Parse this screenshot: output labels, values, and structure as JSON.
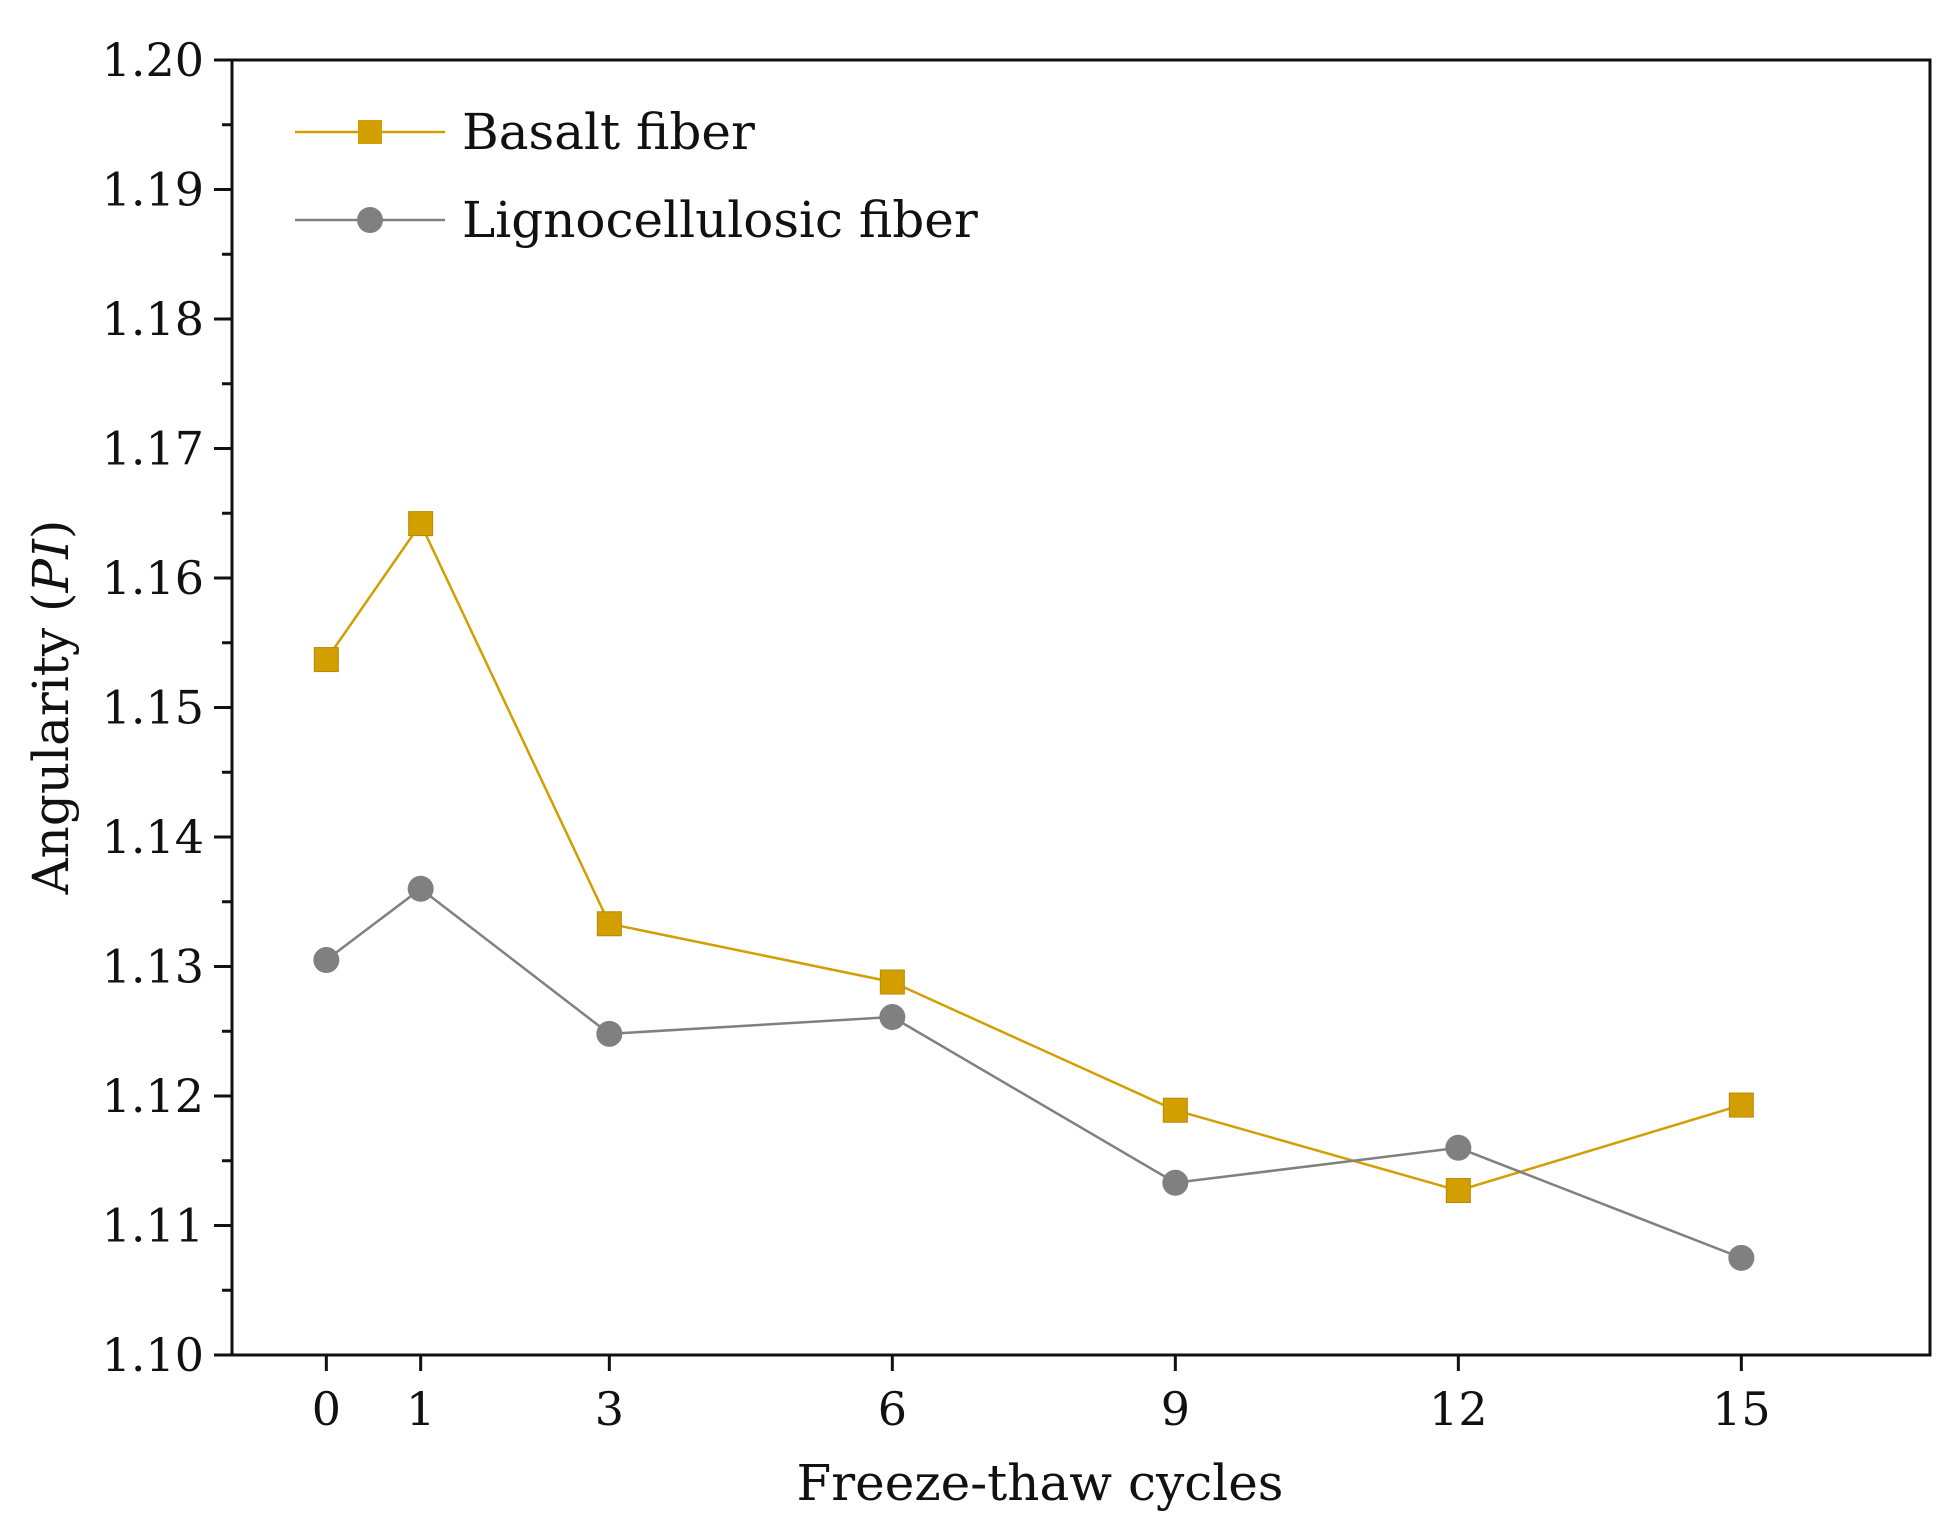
{
  "chart_data": {
    "type": "line",
    "title": "",
    "xlabel": "Freeze-thaw cycles",
    "ylabel_prefix": "Angularity (",
    "ylabel_italic": "PI",
    "ylabel_suffix": ")",
    "x": [
      0,
      1,
      3,
      6,
      9,
      12,
      15
    ],
    "x_tick_labels": [
      "0",
      "1",
      "3",
      "6",
      "9",
      "12",
      "15"
    ],
    "xlim": [
      -1,
      17
    ],
    "ylim": [
      1.1,
      1.2
    ],
    "y_ticks": [
      1.1,
      1.11,
      1.12,
      1.13,
      1.14,
      1.15,
      1.16,
      1.17,
      1.18,
      1.19,
      1.2
    ],
    "y_tick_labels": [
      "1.10",
      "1.11",
      "1.12",
      "1.13",
      "1.14",
      "1.15",
      "1.16",
      "1.17",
      "1.18",
      "1.19",
      "1.20"
    ],
    "grid": false,
    "legend_position": "top-left",
    "series": [
      {
        "name": "Basalt fiber",
        "color": "#d39e00",
        "marker": "square",
        "values": [
          1.1537,
          1.1642,
          1.1333,
          1.1288,
          1.1189,
          1.1127,
          1.1193
        ]
      },
      {
        "name": "Lignocellulosic fiber",
        "color": "#808080",
        "marker": "circle",
        "values": [
          1.1305,
          1.136,
          1.1248,
          1.1261,
          1.1133,
          1.116,
          1.1075
        ]
      }
    ]
  }
}
